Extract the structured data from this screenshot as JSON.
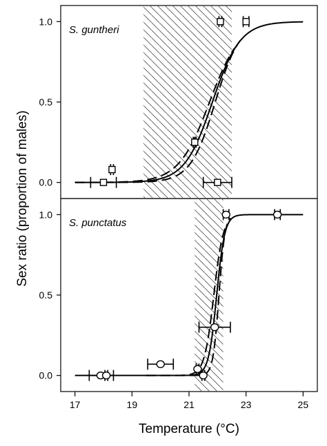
{
  "chart_data": [
    {
      "type": "line",
      "panel_label": "S. guntheri",
      "xlabel": "Temperature (°C)",
      "ylabel": "Sex ratio (proportion of males)",
      "xlim": [
        16.5,
        25.5
      ],
      "ylim": [
        -0.1,
        1.1
      ],
      "xticks": [
        "17",
        "19",
        "21",
        "23",
        "25"
      ],
      "yticks": [
        "0.0",
        "0.5",
        "1.0"
      ],
      "shaded_range": [
        19.4,
        22.5
      ],
      "marker": "square",
      "points": [
        {
          "x": 18.0,
          "y": 0.0,
          "xerr": [
            17.55,
            18.45
          ]
        },
        {
          "x": 18.3,
          "y": 0.08,
          "xerr": [
            18.25,
            18.35
          ]
        },
        {
          "x": 21.2,
          "y": 0.25,
          "xerr": [
            21.15,
            21.25
          ]
        },
        {
          "x": 22.0,
          "y": 0.0,
          "xerr": [
            21.5,
            22.5
          ]
        },
        {
          "x": 22.1,
          "y": 1.0,
          "xerr": [
            22.05,
            22.15
          ]
        },
        {
          "x": 23.0,
          "y": 1.0,
          "xerr": [
            22.9,
            23.1
          ]
        }
      ],
      "fit": {
        "pivot": 21.82,
        "slope": 2.05,
        "x_start": 17.0,
        "x_end": 25.0
      },
      "ci_lower": {
        "pivot": 21.92,
        "slope": 2.3,
        "x_start": 17.0,
        "x_end": 22.8
      },
      "ci_upper": {
        "pivot": 21.72,
        "slope": 1.85,
        "x_start": 17.0,
        "x_end": 22.6
      }
    },
    {
      "type": "line",
      "panel_label": "S. punctatus",
      "xlabel": "Temperature (°C)",
      "ylabel": "Sex ratio (proportion of males)",
      "xlim": [
        16.5,
        25.5
      ],
      "ylim": [
        -0.1,
        1.1
      ],
      "xticks": [
        "17",
        "19",
        "21",
        "23",
        "25"
      ],
      "yticks": [
        "0.0",
        "0.5",
        "1.0"
      ],
      "shaded_range": [
        21.2,
        22.2
      ],
      "marker": "circle",
      "points": [
        {
          "x": 17.9,
          "y": 0.0,
          "xerr": [
            17.5,
            18.35
          ]
        },
        {
          "x": 18.1,
          "y": 0.0,
          "xerr": [
            18.05,
            18.15
          ]
        },
        {
          "x": 20.0,
          "y": 0.07,
          "xerr": [
            19.55,
            20.45
          ]
        },
        {
          "x": 21.3,
          "y": 0.04,
          "xerr": [
            21.25,
            21.35
          ]
        },
        {
          "x": 21.5,
          "y": 0.0,
          "xerr": [
            21.45,
            21.55
          ]
        },
        {
          "x": 21.9,
          "y": 0.3,
          "xerr": [
            21.35,
            22.45
          ]
        },
        {
          "x": 22.3,
          "y": 1.0,
          "xerr": [
            22.2,
            22.4
          ]
        },
        {
          "x": 24.1,
          "y": 1.0,
          "xerr": [
            24.0,
            24.2
          ]
        }
      ],
      "fit": {
        "pivot": 21.97,
        "slope": 7.0,
        "x_start": 17.0,
        "x_end": 25.0
      },
      "ci_lower": {
        "pivot": 22.05,
        "slope": 9.5,
        "x_start": 19.5,
        "x_end": 22.45
      },
      "ci_upper": {
        "pivot": 21.87,
        "slope": 6.0,
        "x_start": 19.5,
        "x_end": 22.3
      }
    }
  ]
}
